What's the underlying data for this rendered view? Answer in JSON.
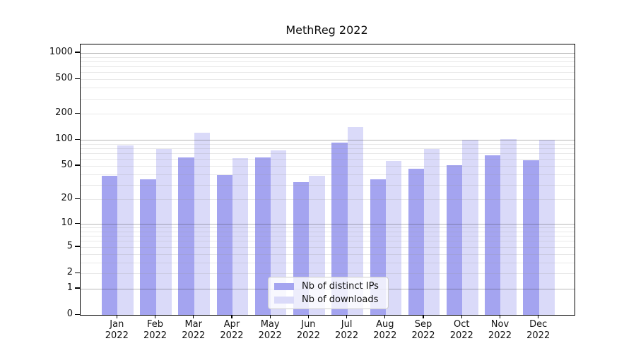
{
  "figure": {
    "title": "MethReg 2022",
    "background": "#ffffff"
  },
  "chart_data": {
    "type": "bar",
    "title": "MethReg 2022",
    "categories": [
      "Jan",
      "Feb",
      "Mar",
      "Apr",
      "May",
      "Jun",
      "Jul",
      "Aug",
      "Sep",
      "Oct",
      "Nov",
      "Dec"
    ],
    "x_year_label": "2022",
    "series": [
      {
        "name": "Nb of distinct IPs",
        "color": "#a4a4f0",
        "values": [
          38,
          35,
          63,
          39,
          62,
          32,
          93,
          35,
          46,
          51,
          66,
          58
        ]
      },
      {
        "name": "Nb of downloads",
        "color": "#dadaf9",
        "values": [
          86,
          78,
          120,
          61,
          75,
          38,
          140,
          57,
          79,
          100,
          103,
          101
        ]
      }
    ],
    "y_ticks": [
      0,
      1,
      2,
      5,
      10,
      20,
      50,
      100,
      200,
      500,
      1000
    ],
    "y_scale": "log10(value+1)",
    "ylim": [
      0,
      1250
    ],
    "grid": {
      "major_values": [
        1,
        10,
        100,
        1000
      ],
      "major_color": "#b1b1b1",
      "minor_color": "#e9e9e9",
      "minor_rule": "2-9 times each decade"
    },
    "legend": {
      "position": "lower center",
      "entries": [
        "Nb of distinct IPs",
        "Nb of downloads"
      ]
    },
    "axis_color": "#000000",
    "label_color": "#111111"
  }
}
